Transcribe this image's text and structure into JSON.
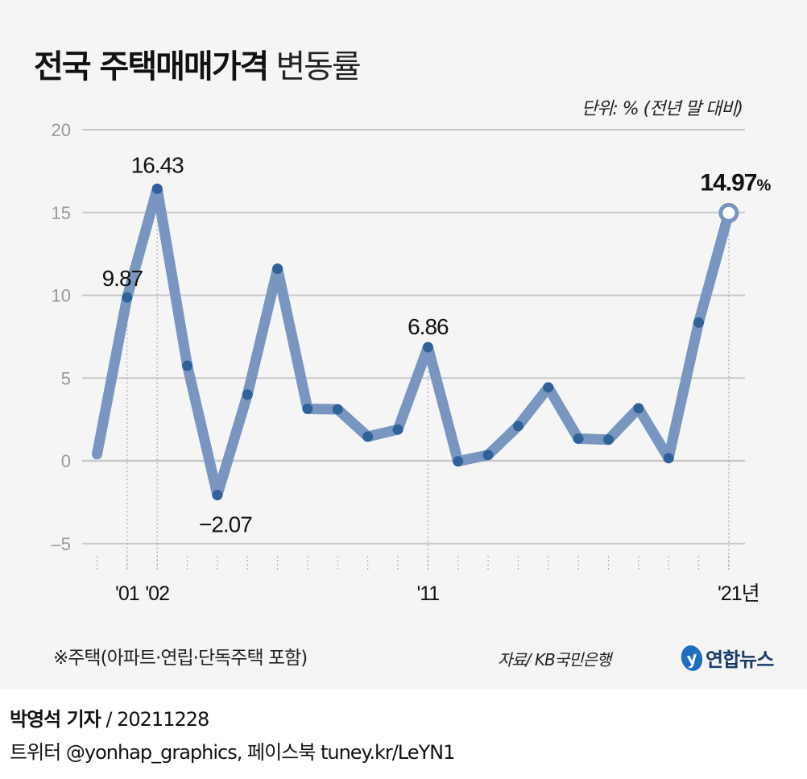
{
  "title": {
    "bold": "전국 주택매매가격",
    "light": "변동률"
  },
  "unit": "단위: % (전년 말 대비)",
  "note": "※주택(아파트·연립·단독주택 포함)",
  "source": "자료/ KB국민은행",
  "logo": {
    "mark": "y",
    "text": "연합뉴스"
  },
  "footer": {
    "reporter": "박영석 기자",
    "separator": " /  ",
    "date": "20211228",
    "social": "트위터 @yonhap_graphics, 페이스북 tuney.kr/LeYN1"
  },
  "colors": {
    "line": "#7896c0",
    "point": "#30629a",
    "grid": "#c8c8c8",
    "axis_label": "#999999",
    "background": "#f5f5f5"
  },
  "chart_data": {
    "type": "line",
    "title": "전국 주택매매가격 변동률",
    "xlabel": "",
    "ylabel": "단위: % (전년 말 대비)",
    "ylim": [
      -5,
      20
    ],
    "yticks": [
      20,
      15,
      10,
      5,
      0,
      -5
    ],
    "ytick_labels": [
      "20",
      "15",
      "10",
      "5",
      "0",
      "–5"
    ],
    "grid": true,
    "x": [
      2000,
      2001,
      2002,
      2003,
      2004,
      2005,
      2006,
      2007,
      2008,
      2009,
      2010,
      2011,
      2012,
      2013,
      2014,
      2015,
      2016,
      2017,
      2018,
      2019,
      2020,
      2021
    ],
    "xtick_labels": [
      {
        "x": 2001,
        "label": "'01"
      },
      {
        "x": 2002,
        "label": "'02"
      },
      {
        "x": 2011,
        "label": "'11"
      },
      {
        "x": 2021,
        "label": "'21년"
      }
    ],
    "series": [
      {
        "name": "전국 주택매매가격 변동률",
        "values": [
          0.4,
          9.87,
          16.43,
          5.74,
          -2.07,
          4.0,
          11.6,
          3.14,
          3.11,
          1.46,
          1.89,
          6.86,
          -0.03,
          0.35,
          2.1,
          4.43,
          1.34,
          1.28,
          3.17,
          0.16,
          8.35,
          14.97
        ]
      }
    ],
    "annotations": [
      {
        "x": 2001,
        "label": "9.87"
      },
      {
        "x": 2002,
        "label": "16.43"
      },
      {
        "x": 2004,
        "label": "−2.07"
      },
      {
        "x": 2011,
        "label": "6.86"
      },
      {
        "x": 2021,
        "label": "14.97",
        "suffix": "%"
      }
    ]
  }
}
